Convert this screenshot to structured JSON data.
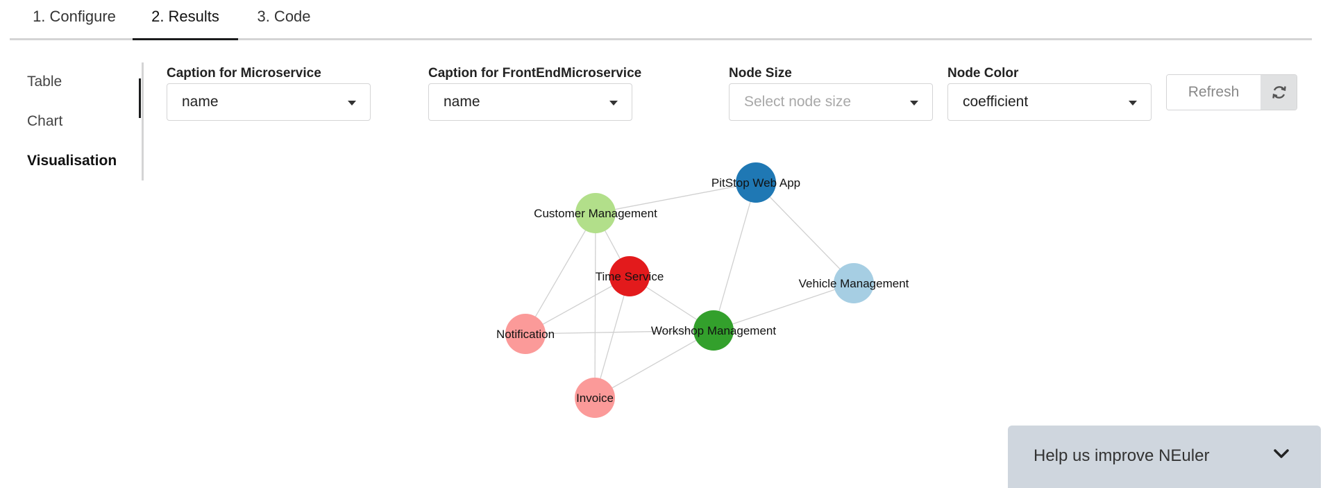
{
  "tabs": [
    {
      "label": "1. Configure"
    },
    {
      "label": "2. Results"
    },
    {
      "label": "3. Code"
    }
  ],
  "side_menu": {
    "items": [
      {
        "label": "Table"
      },
      {
        "label": "Chart"
      },
      {
        "label": "Visualisation"
      }
    ]
  },
  "fields": {
    "microservice": {
      "label": "Caption for Microservice",
      "value": "name"
    },
    "frontend": {
      "label": "Caption for FrontEndMicroservice",
      "value": "name"
    },
    "node_size": {
      "label": "Node Size",
      "placeholder": "Select node size"
    },
    "node_color": {
      "label": "Node Color",
      "value": "coefficient"
    }
  },
  "refresh": {
    "label": "Refresh",
    "icon": "refresh-icon"
  },
  "graph": {
    "nodes": [
      {
        "id": "pitstop",
        "label": "PitStop Web App",
        "color": "#1f78b4"
      },
      {
        "id": "customer",
        "label": "Customer Management",
        "color": "#b2df8a"
      },
      {
        "id": "time",
        "label": "Time Service",
        "color": "#e31a1c"
      },
      {
        "id": "vehicle",
        "label": "Vehicle Management",
        "color": "#a6cee3"
      },
      {
        "id": "workshop",
        "label": "Workshop Management",
        "color": "#33a02c"
      },
      {
        "id": "notification",
        "label": "Notification",
        "color": "#fb9a99"
      },
      {
        "id": "invoice",
        "label": "Invoice",
        "color": "#fb9a99"
      }
    ],
    "edges": [
      [
        "customer",
        "pitstop"
      ],
      [
        "pitstop",
        "vehicle"
      ],
      [
        "pitstop",
        "workshop"
      ],
      [
        "customer",
        "time"
      ],
      [
        "customer",
        "notification"
      ],
      [
        "customer",
        "invoice"
      ],
      [
        "time",
        "workshop"
      ],
      [
        "time",
        "notification"
      ],
      [
        "time",
        "invoice"
      ],
      [
        "notification",
        "workshop"
      ],
      [
        "workshop",
        "vehicle"
      ],
      [
        "invoice",
        "workshop"
      ]
    ]
  },
  "feedback": {
    "label": "Help us improve NEuler",
    "icon": "chevron-down-icon"
  }
}
